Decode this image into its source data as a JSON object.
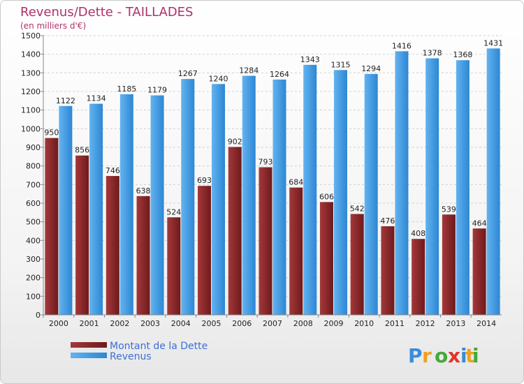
{
  "colors": {
    "debt": "#6e1a1c",
    "debt_light": "#a4383a",
    "revenue": "#2c87d4",
    "revenue_light": "#63b3ef",
    "title": "#b0306a",
    "legend_text": "#3a6fd8"
  },
  "logo": {
    "text": "Proxiti"
  },
  "chart_data": {
    "type": "bar",
    "title": "Revenus/Dette - TAILLADES",
    "subtitle": "(en milliers d'€)",
    "xlabel": "",
    "ylabel": "",
    "ylim": [
      0,
      1500
    ],
    "yticks": [
      0,
      100,
      200,
      300,
      400,
      500,
      600,
      700,
      800,
      900,
      1000,
      1100,
      1200,
      1300,
      1400,
      1500
    ],
    "grid": true,
    "legend_position": "bottom-left",
    "categories": [
      "2000",
      "2001",
      "2002",
      "2003",
      "2004",
      "2005",
      "2006",
      "2007",
      "2008",
      "2009",
      "2010",
      "2011",
      "2012",
      "2013",
      "2014"
    ],
    "series": [
      {
        "name": "Montant de la Dette",
        "values": [
          950,
          856,
          746,
          638,
          524,
          693,
          902,
          793,
          684,
          606,
          542,
          476,
          408,
          539,
          464
        ]
      },
      {
        "name": "Revenus",
        "values": [
          1122,
          1134,
          1185,
          1179,
          1267,
          1240,
          1284,
          1264,
          1343,
          1315,
          1294,
          1416,
          1378,
          1368,
          1431
        ]
      }
    ]
  }
}
